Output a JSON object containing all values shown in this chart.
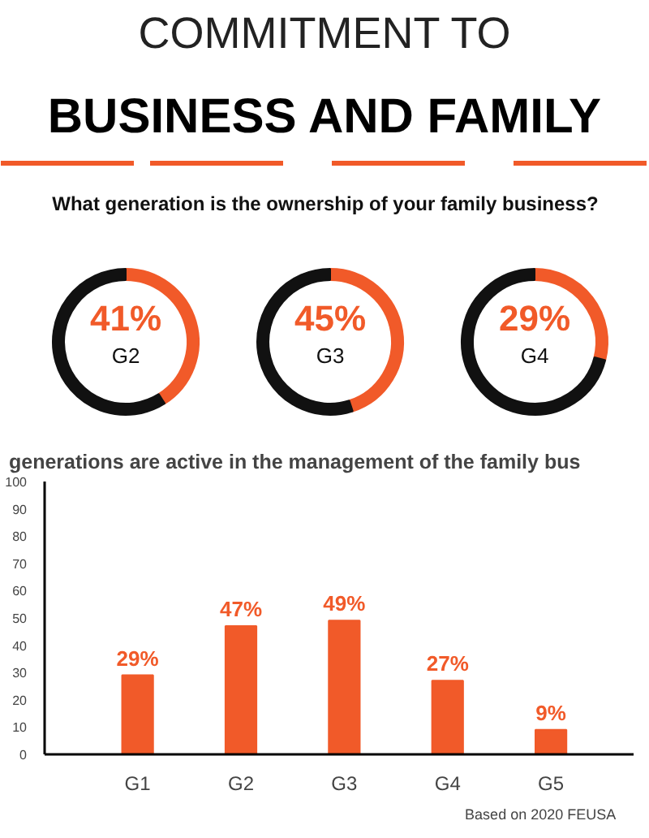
{
  "chart_data": [
    {
      "type": "other",
      "title": "COMMITMENT TO",
      "subtitle": "BUSINESS AND FAMILY",
      "annotations": [
        "What generation is the ownership of your family business?"
      ]
    },
    {
      "type": "donut",
      "title": "G2",
      "categories": [
        null,
        null
      ],
      "values": [
        41,
        59
      ],
      "colors": [
        "#f15a29",
        "#111111"
      ],
      "value_labels": [
        "41%",
        null
      ]
    },
    {
      "type": "donut",
      "title": "G3",
      "categories": [
        null,
        null
      ],
      "values": [
        45,
        55
      ],
      "colors": [
        "#f15a29",
        "#111111"
      ],
      "value_labels": [
        "45%",
        null
      ]
    },
    {
      "type": "donut",
      "title": "G4",
      "categories": [
        null,
        null
      ],
      "values": [
        29,
        71
      ],
      "colors": [
        "#f15a29",
        "#111111"
      ],
      "value_labels": [
        "29%",
        null
      ]
    },
    {
      "type": "bar",
      "title": "generations are active in the management of the family bus",
      "categories": [
        "G1",
        "G2",
        "G3",
        "G4",
        "G5"
      ],
      "values": [
        29,
        47,
        49,
        27,
        9
      ],
      "color": "#f15a29",
      "value_labels": [
        "29%",
        "47%",
        "49%",
        "27%",
        "9%"
      ],
      "ylim": [
        0,
        100
      ],
      "yticks": [
        0,
        10,
        20,
        30,
        40,
        50,
        60,
        70,
        80,
        90,
        100
      ],
      "grid": false,
      "annotations": [
        "Based on 2020 FEUSA"
      ]
    }
  ]
}
